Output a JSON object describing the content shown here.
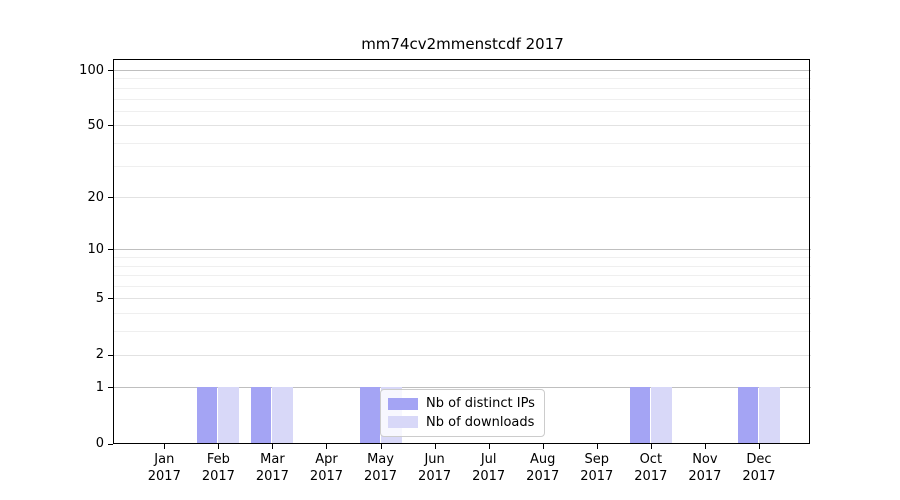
{
  "title": "mm74cv2mmenstcdf 2017",
  "chart_data": {
    "type": "bar",
    "title": "mm74cv2mmenstcdf 2017",
    "xlabel": "",
    "ylabel": "",
    "categories": [
      "Jan",
      "Feb",
      "Mar",
      "Apr",
      "May",
      "Jun",
      "Jul",
      "Aug",
      "Sep",
      "Oct",
      "Nov",
      "Dec"
    ],
    "category_year": "2017",
    "series": [
      {
        "name": "Nb of distinct IPs",
        "color": "#a4a4f4",
        "values": [
          0,
          1,
          1,
          0,
          1,
          0,
          0,
          0,
          0,
          1,
          0,
          1
        ]
      },
      {
        "name": "Nb of downloads",
        "color": "#d8d8f8",
        "values": [
          0,
          1,
          1,
          0,
          1,
          0,
          0,
          0,
          0,
          1,
          0,
          1
        ]
      }
    ],
    "yscale": "log1p",
    "yticks": [
      0,
      1,
      2,
      5,
      10,
      20,
      50,
      100
    ],
    "minor_yticks": [
      3,
      4,
      6,
      7,
      8,
      9,
      30,
      40,
      60,
      70,
      80,
      90
    ],
    "decade_yticks": [
      1,
      10,
      100
    ],
    "ylim": [
      0,
      114
    ],
    "grid": true,
    "legend_position": "lower center"
  }
}
